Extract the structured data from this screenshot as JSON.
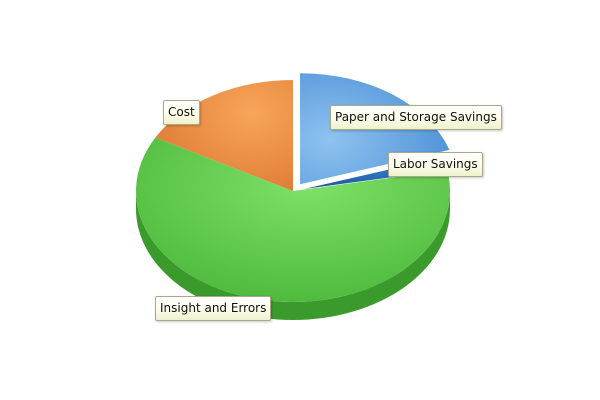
{
  "chart_data": {
    "type": "pie",
    "style": "3d-exploded",
    "slices": [
      {
        "label": "Paper and Storage Savings",
        "value": 20,
        "color": "#4a90d9",
        "exploded": true
      },
      {
        "label": "Labor Savings",
        "value": 2,
        "color": "#1f5fa8",
        "exploded": true
      },
      {
        "label": "Insight and Errors",
        "value": 61,
        "color": "#5cc54c",
        "exploded": false
      },
      {
        "label": "Cost",
        "value": 17,
        "color": "#e8883e",
        "exploded": false
      }
    ],
    "legend": "none"
  }
}
